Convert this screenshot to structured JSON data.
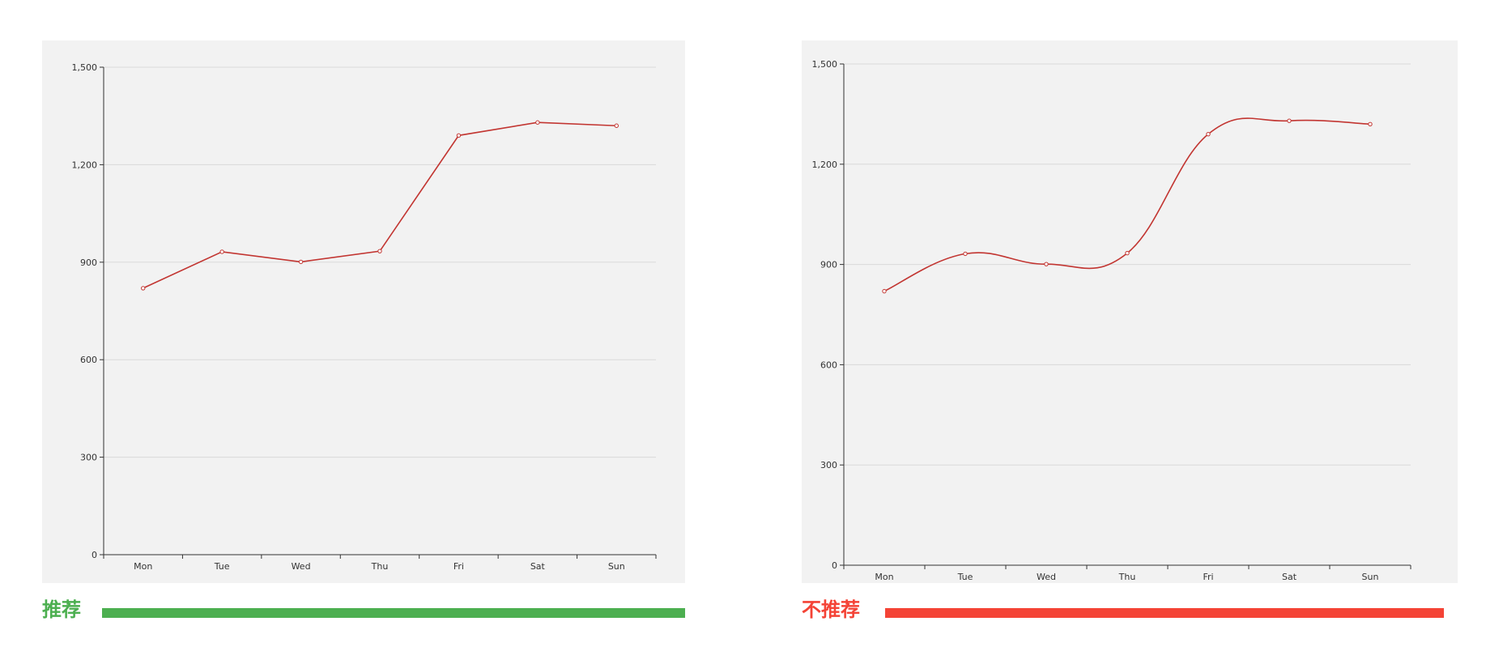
{
  "colors": {
    "line": "#c23531",
    "panel_background": "#f2f2f2",
    "grid": "#d9d9d9",
    "axis": "#333333",
    "recommended": "#4caf50",
    "not_recommended": "#f44336"
  },
  "left": {
    "caption": "推荐"
  },
  "right": {
    "caption": "不推荐"
  },
  "chart_data": [
    {
      "type": "line",
      "smooth": false,
      "categories": [
        "Mon",
        "Tue",
        "Wed",
        "Thu",
        "Fri",
        "Sat",
        "Sun"
      ],
      "values": [
        820,
        932,
        901,
        934,
        1290,
        1330,
        1320
      ],
      "ylim": [
        0,
        1500
      ],
      "yticks": [
        0,
        300,
        600,
        900,
        1200,
        1500
      ],
      "ytick_labels": [
        "0",
        "300",
        "600",
        "900",
        "1,200",
        "1,500"
      ],
      "grid": true
    },
    {
      "type": "line",
      "smooth": true,
      "categories": [
        "Mon",
        "Tue",
        "Wed",
        "Thu",
        "Fri",
        "Sat",
        "Sun"
      ],
      "values": [
        820,
        932,
        901,
        934,
        1290,
        1330,
        1320
      ],
      "ylim": [
        0,
        1500
      ],
      "yticks": [
        0,
        300,
        600,
        900,
        1200,
        1500
      ],
      "ytick_labels": [
        "0",
        "300",
        "600",
        "900",
        "1,200",
        "1,500"
      ],
      "grid": true
    }
  ]
}
